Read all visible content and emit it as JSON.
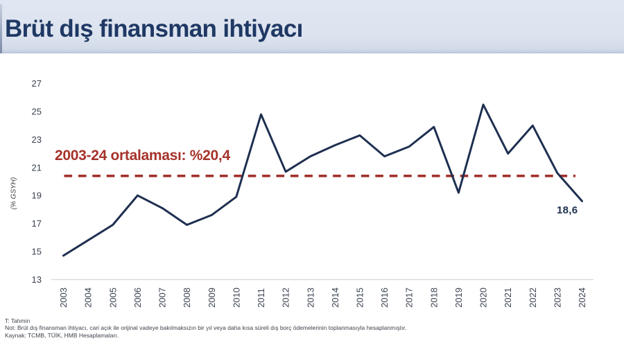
{
  "header": {
    "title": "Brüt dış finansman ihtiyacı"
  },
  "chart_data": {
    "type": "line",
    "title": "Brüt dış finansman ihtiyacı",
    "xlabel": "",
    "ylabel": "(% GSYH)",
    "x": [
      2003,
      2004,
      2005,
      2006,
      2007,
      2008,
      2009,
      2010,
      2011,
      2012,
      2013,
      2014,
      2015,
      2016,
      2017,
      2018,
      2019,
      2020,
      2021,
      2022,
      2023,
      2024
    ],
    "values": [
      14.7,
      15.8,
      16.9,
      19.0,
      18.1,
      16.9,
      17.6,
      18.9,
      24.8,
      20.7,
      21.8,
      22.6,
      23.3,
      21.8,
      22.5,
      23.9,
      19.2,
      25.5,
      22.0,
      24.0,
      20.6,
      18.6
    ],
    "ylim": [
      13,
      27
    ],
    "yticks": [
      13,
      15,
      17,
      19,
      21,
      23,
      25,
      27
    ],
    "grid": false,
    "legend": "none",
    "line_color": "#1e2f50",
    "average_line": {
      "value": 20.4,
      "label": "2003-24 ortalaması: %20,4",
      "style": "dashed",
      "color": "#9e2d26"
    },
    "last_point_label": "18,6"
  },
  "footnotes": {
    "line1": "T: Tahmin",
    "line2": "Not:  Brüt dış finansman ihtiyacı, cari açık ile orijinal vadeye bakılmaksızın bir yıl veya daha kısa süreli dış borç ödemelerinin toplanmasıyla hesaplanmıştır.",
    "line3": "Kaynak: TCMB, TÜİK, HMB Hesaplamaları."
  },
  "colors": {
    "header_bg": "#dce3ef",
    "title_text": "#1f3864",
    "line": "#1e2f50",
    "average_red": "#9e2d26",
    "axis_text": "#3a4150",
    "axis_line": "#d9d9d9"
  }
}
